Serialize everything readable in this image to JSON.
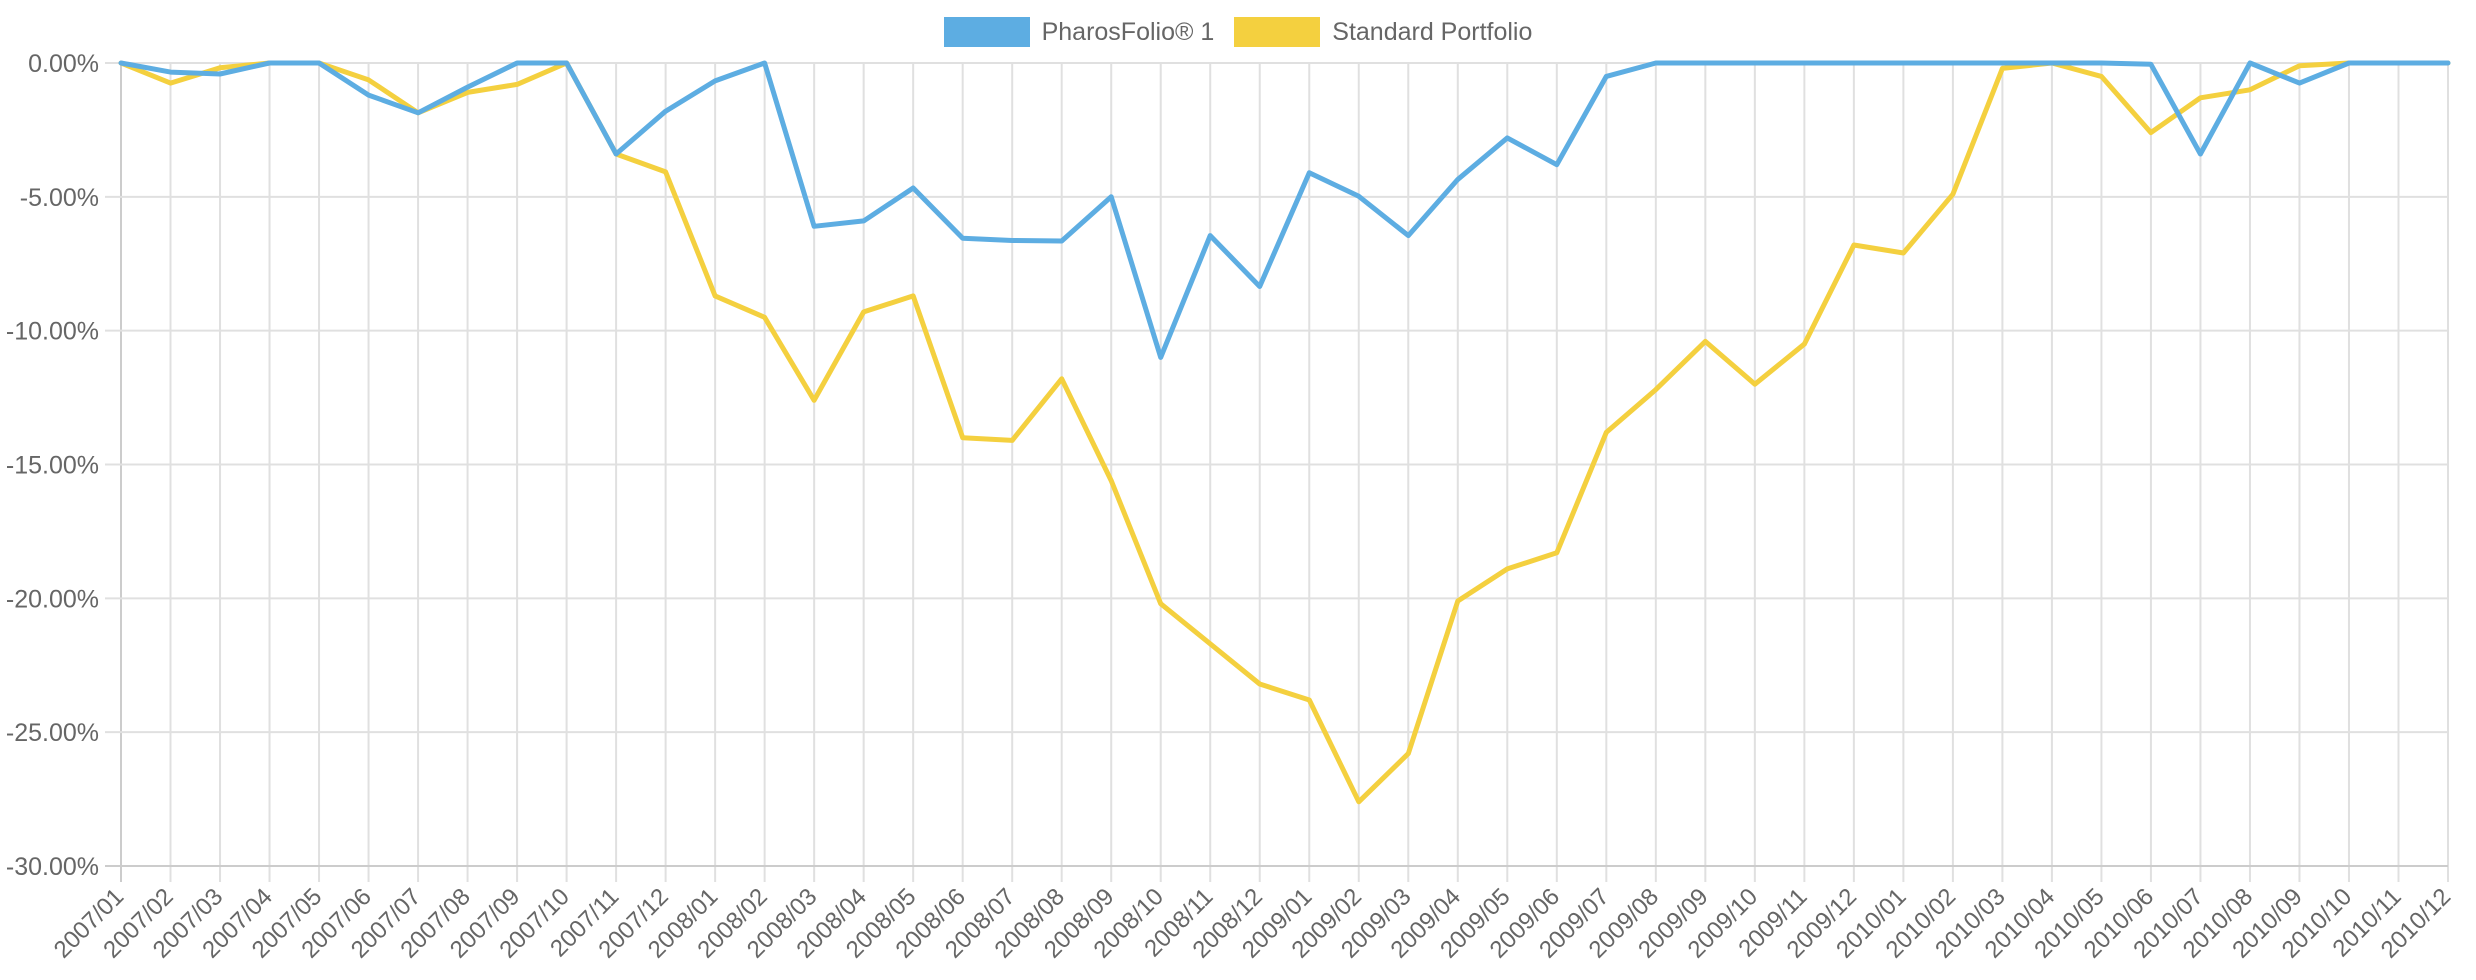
{
  "legend": {
    "items": [
      {
        "label": "PharosFolio® 1",
        "color": "#5dade2"
      },
      {
        "label": "Standard Portfolio",
        "color": "#f4d03f"
      }
    ]
  },
  "colors": {
    "grid": "#e0e0e0",
    "axis": "#cccccc",
    "tick_text": "#666666"
  },
  "chart_data": {
    "type": "line",
    "title": "",
    "xlabel": "",
    "ylabel": "",
    "ylim": [
      -30,
      0
    ],
    "yticks": [
      0,
      -5,
      -10,
      -15,
      -20,
      -25,
      -30
    ],
    "ytick_labels": [
      "0.00%",
      "-5.00%",
      "-10.00%",
      "-15.00%",
      "-20.00%",
      "-25.00%",
      "-30.00%"
    ],
    "grid": true,
    "legend_position": "top",
    "categories": [
      "2007/01",
      "2007/02",
      "2007/03",
      "2007/04",
      "2007/05",
      "2007/06",
      "2007/07",
      "2007/08",
      "2007/09",
      "2007/10",
      "2007/11",
      "2007/12",
      "2008/01",
      "2008/02",
      "2008/03",
      "2008/04",
      "2008/05",
      "2008/06",
      "2008/07",
      "2008/08",
      "2008/09",
      "2008/10",
      "2008/11",
      "2008/12",
      "2009/01",
      "2009/02",
      "2009/03",
      "2009/04",
      "2009/05",
      "2009/06",
      "2009/07",
      "2009/08",
      "2009/09",
      "2009/10",
      "2009/11",
      "2009/12",
      "2010/01",
      "2010/02",
      "2010/03",
      "2010/04",
      "2010/05",
      "2010/06",
      "2010/07",
      "2010/08",
      "2010/09",
      "2010/10",
      "2010/11",
      "2010/12"
    ],
    "series": [
      {
        "name": "PharosFolio® 1",
        "color": "#5dade2",
        "values": [
          0,
          -0.34,
          -0.41,
          0,
          0,
          -1.2,
          -1.86,
          -0.9,
          0,
          0,
          -3.4,
          -1.8,
          -0.67,
          0,
          -6.1,
          -5.9,
          -4.67,
          -6.55,
          -6.63,
          -6.65,
          -5.0,
          -11.0,
          -6.45,
          -8.35,
          -4.1,
          -4.98,
          -6.45,
          -4.35,
          -2.8,
          -3.8,
          -0.5,
          0,
          0,
          0,
          0,
          0,
          0,
          0,
          0,
          0,
          0,
          -0.05,
          -3.4,
          0,
          -0.75,
          0,
          0,
          0
        ]
      },
      {
        "name": "Standard Portfolio",
        "color": "#f4d03f",
        "values": [
          0,
          -0.75,
          -0.18,
          0,
          0,
          -0.63,
          -1.86,
          -1.1,
          -0.8,
          0,
          -3.4,
          -4.07,
          -8.7,
          -9.5,
          -12.6,
          -9.3,
          -8.7,
          -14.0,
          -14.1,
          -11.8,
          -15.6,
          -20.2,
          -21.7,
          -23.2,
          -23.8,
          -27.6,
          -25.8,
          -20.1,
          -18.9,
          -18.3,
          -13.8,
          -12.2,
          -10.4,
          -12.0,
          -10.5,
          -6.8,
          -7.1,
          -4.9,
          -0.2,
          0,
          -0.5,
          -2.6,
          -1.3,
          -1.0,
          -0.1,
          0,
          0,
          0
        ]
      }
    ]
  }
}
